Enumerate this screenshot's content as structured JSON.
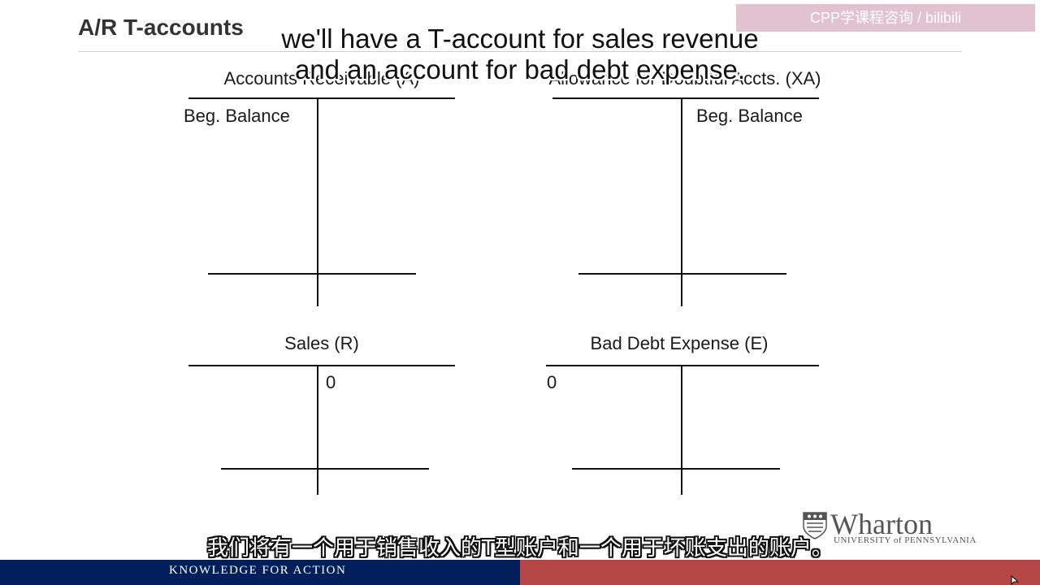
{
  "slide": {
    "title": "A/R T-accounts",
    "watermark": "CPP学课程咨询 / bilibili",
    "footer_tagline": "KNOWLEDGE FOR ACTION",
    "logo": {
      "name": "Wharton",
      "subtitle": "UNIVERSITY of PENNSYLVANIA"
    }
  },
  "accounts": {
    "ar": {
      "title": "Accounts Receivable (A)",
      "left_entry": "Beg. Balance"
    },
    "xa": {
      "title": "Allowance for Doubtful Accts. (XA)",
      "right_entry": "Beg. Balance"
    },
    "sales": {
      "title": "Sales (R)",
      "right_entry": "0"
    },
    "bde": {
      "title": "Bad Debt Expense (E)",
      "left_entry": "0"
    }
  },
  "subtitles": {
    "english_line1": "we'll have a T-account for sales revenue",
    "english_line2": "and an account for bad debt expense.",
    "chinese": "我们将有一个用于销售收入的T型账户和一个用于坏账支出的账户。"
  },
  "colors": {
    "footer_navy": "#011f5b",
    "footer_red": "#990000",
    "title_gray": "#333333"
  }
}
